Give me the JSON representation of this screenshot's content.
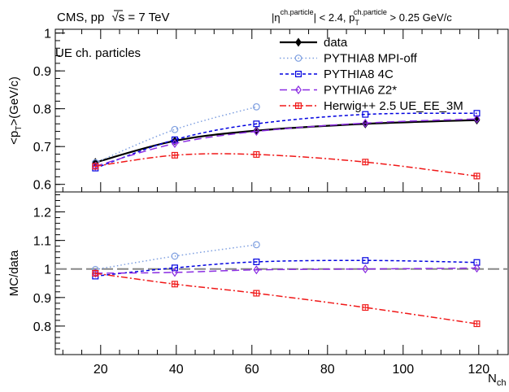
{
  "header": {
    "left_text": "CMS, pp",
    "sqrt_symbol": "√",
    "s_letter": "s",
    "energy_text": " = 7 TeV",
    "cut_eta_prefix": "|η",
    "cut_eta_sup": "ch.particle",
    "cut_eta_suffix": "| < 2.4, p",
    "cut_pt_sub": "T",
    "cut_pt_sup": "ch.particle",
    "cut_pt_suffix": " > 0.25 GeV/c"
  },
  "chart_data": {
    "type": "line",
    "xlabel": "N",
    "xlabel_sub": "ch",
    "x_ticks": [
      "20",
      "40",
      "60",
      "80",
      "100",
      "120"
    ],
    "xlim": [
      8,
      128
    ],
    "panels": [
      {
        "id": "top",
        "ylabel_prefix": "<p",
        "ylabel_sub": "T",
        "ylabel_suffix": ">(GeV/c)",
        "ylim": [
          0.58,
          1.01
        ],
        "y_ticks": [
          "0.6",
          "0.7",
          "0.8",
          "0.9",
          "1"
        ],
        "annotation": "UE ch. particles",
        "series": [
          {
            "name": "data",
            "color": "#000000",
            "dash": "",
            "marker": "diamond-filled",
            "x": [
              18.6,
              39.6,
              61.2,
              90.0,
              119.5
            ],
            "y": [
              0.658,
              0.715,
              0.742,
              0.76,
              0.77
            ]
          },
          {
            "name": "PYTHIA8 MPI-off",
            "color": "#7e9fe0",
            "dash": "1.5,3",
            "marker": "circle",
            "x": [
              18.6,
              39.6,
              61.2
            ],
            "y": [
              0.657,
              0.745,
              0.805
            ]
          },
          {
            "name": "PYTHIA8 4C",
            "color": "#0000e0",
            "dash": "4,3",
            "marker": "square",
            "x": [
              18.6,
              39.6,
              61.2,
              90.0,
              119.5
            ],
            "y": [
              0.643,
              0.718,
              0.76,
              0.785,
              0.788
            ]
          },
          {
            "name": "PYTHIA6 Z2*",
            "color": "#8a2be2",
            "dash": "9,5",
            "marker": "diamond",
            "x": [
              18.6,
              39.6,
              61.2,
              90.0,
              119.5
            ],
            "y": [
              0.648,
              0.708,
              0.74,
              0.762,
              0.773
            ]
          },
          {
            "name": "Herwig++ 2.5  UE_EE_3M",
            "color": "#f01818",
            "dash": "8,3,2,3",
            "marker": "cross-square",
            "x": [
              18.6,
              39.6,
              61.2,
              90.0,
              119.5
            ],
            "y": [
              0.648,
              0.677,
              0.679,
              0.659,
              0.622
            ]
          }
        ]
      },
      {
        "id": "bottom",
        "ylabel": "MC/data",
        "ylim": [
          0.7,
          1.27
        ],
        "y_ticks": [
          "0.8",
          "0.9",
          "1",
          "1.1",
          "1.2"
        ],
        "reference_line": 1.0,
        "series": [
          {
            "name": "PYTHIA8 MPI-off",
            "color": "#7e9fe0",
            "dash": "1.5,3",
            "marker": "circle",
            "x": [
              18.6,
              39.6,
              61.2
            ],
            "y": [
              0.998,
              1.045,
              1.085
            ]
          },
          {
            "name": "PYTHIA8 4C",
            "color": "#0000e0",
            "dash": "4,3",
            "marker": "square",
            "x": [
              18.6,
              39.6,
              61.2,
              90.0,
              119.5
            ],
            "y": [
              0.975,
              1.004,
              1.025,
              1.03,
              1.023
            ]
          },
          {
            "name": "PYTHIA6 Z2*",
            "color": "#8a2be2",
            "dash": "9,5",
            "marker": "diamond",
            "x": [
              18.6,
              39.6,
              61.2,
              90.0,
              119.5
            ],
            "y": [
              0.985,
              0.988,
              0.997,
              1.0,
              1.003
            ]
          },
          {
            "name": "Herwig++ 2.5  UE_EE_3M",
            "color": "#f01818",
            "dash": "8,3,2,3",
            "marker": "cross-square",
            "x": [
              18.6,
              39.6,
              61.2,
              90.0,
              119.5
            ],
            "y": [
              0.985,
              0.947,
              0.915,
              0.865,
              0.808
            ]
          }
        ]
      }
    ]
  }
}
